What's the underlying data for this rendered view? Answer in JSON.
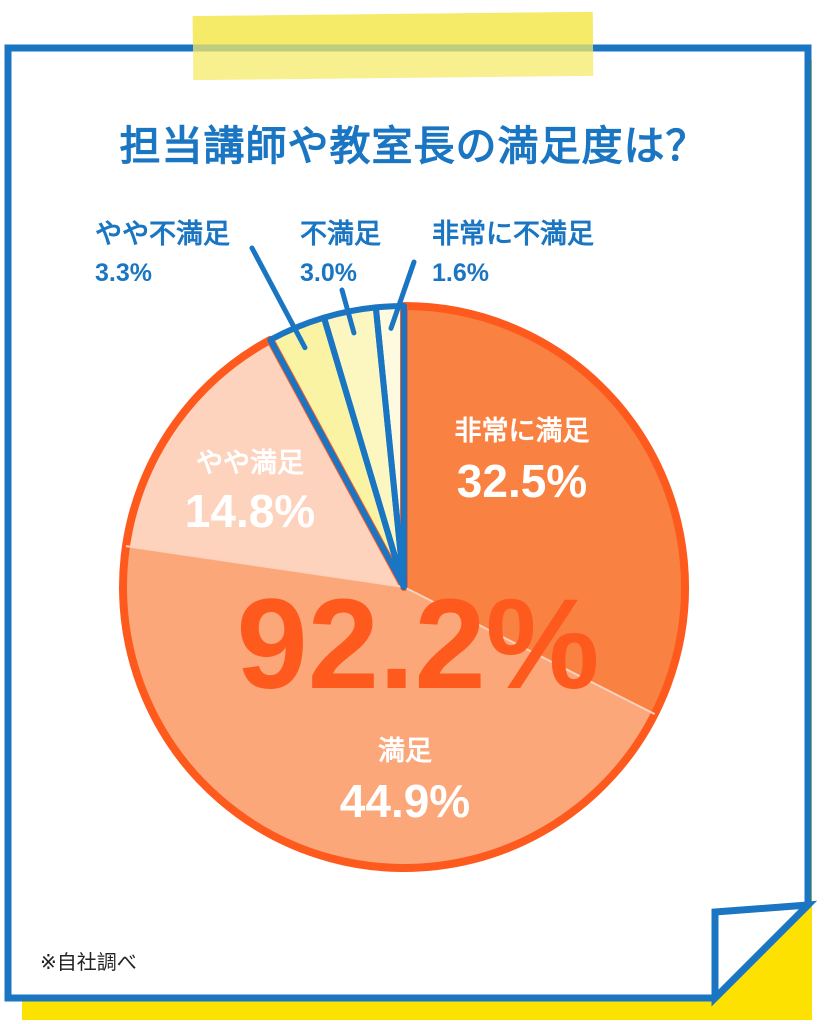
{
  "title": "担当講師や教室長の満足度は？",
  "note": "※自社調べ",
  "colors": {
    "blue": "#1a75c2",
    "yellow": "#fde100",
    "orange_border": "#ff5a1e",
    "big_total": "#ff5a1e"
  },
  "chart_data": {
    "type": "pie",
    "title": "担当講師や教室長の満足度は？",
    "total_label": "92.2%",
    "slices": [
      {
        "label": "非常に満足",
        "value": 32.5,
        "value_label": "32.5%",
        "color": "#f98242",
        "text_color": "#ffffff"
      },
      {
        "label": "満足",
        "value": 44.9,
        "value_label": "44.9%",
        "color": "#fba77a",
        "text_color": "#ffffff"
      },
      {
        "label": "やや満足",
        "value": 14.8,
        "value_label": "14.8%",
        "color": "#fdd3bd",
        "text_color": "#ffffff"
      },
      {
        "label": "やや不満足",
        "value": 3.3,
        "value_label": "3.3%",
        "color": "#fbf3a4",
        "text_color": "#1a75c2"
      },
      {
        "label": "不満足",
        "value": 3.0,
        "value_label": "3.0%",
        "color": "#fcf6c0",
        "text_color": "#1a75c2"
      },
      {
        "label": "非常に不満足",
        "value": 1.6,
        "value_label": "1.6%",
        "color": "#fefae0",
        "text_color": "#1a75c2"
      }
    ]
  }
}
